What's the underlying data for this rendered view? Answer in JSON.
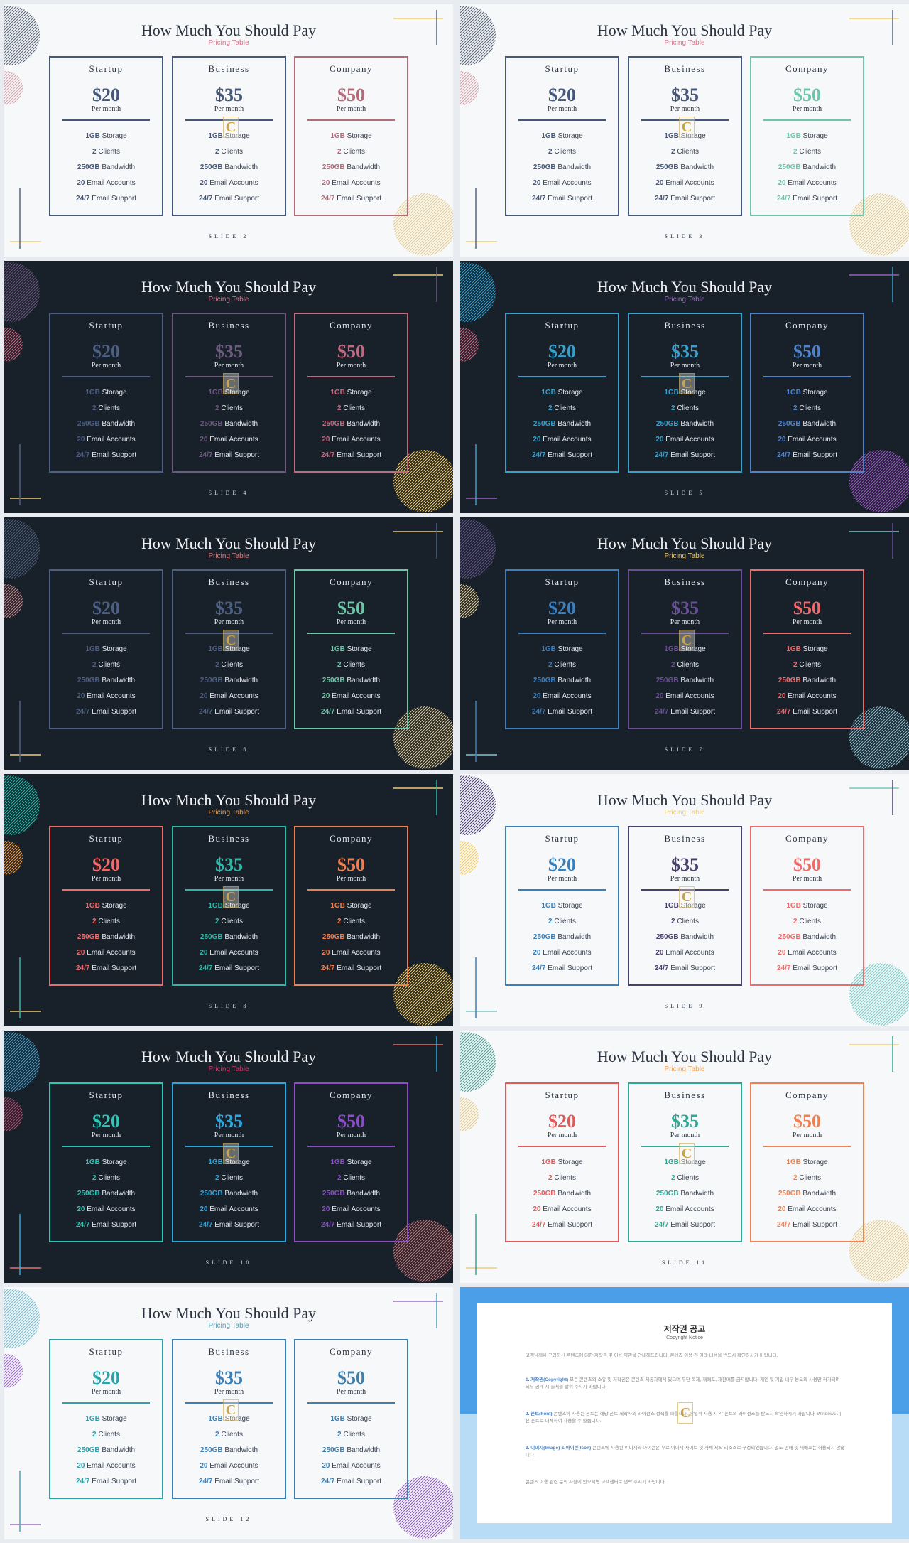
{
  "common": {
    "title": "How Much You Should Pay",
    "subtitle": "Pricing Table",
    "period": "Per month"
  },
  "plans": [
    {
      "name": "Startup",
      "price": "$20",
      "features": [
        {
          "value": "1GB",
          "label": "Storage"
        },
        {
          "value": "2",
          "label": "Clients"
        },
        {
          "value": "250GB",
          "label": "Bandwidth"
        },
        {
          "value": "20",
          "label": "Email Accounts"
        },
        {
          "value": "24/7",
          "label": "Email Support"
        }
      ]
    },
    {
      "name": "Business",
      "price": "$35",
      "features": [
        {
          "value": "1GB",
          "label": "Storage"
        },
        {
          "value": "2",
          "label": "Clients"
        },
        {
          "value": "250GB",
          "label": "Bandwidth"
        },
        {
          "value": "20",
          "label": "Email Accounts"
        },
        {
          "value": "24/7",
          "label": "Email Support"
        }
      ]
    },
    {
      "name": "Company",
      "price": "$50",
      "features": [
        {
          "value": "1GB",
          "label": "Storage"
        },
        {
          "value": "2",
          "label": "Clients"
        },
        {
          "value": "250GB",
          "label": "Bandwidth"
        },
        {
          "value": "20",
          "label": "Email Accounts"
        },
        {
          "value": "24/7",
          "label": "Email Support"
        }
      ]
    }
  ],
  "watermark_glyph": "C",
  "slides": [
    {
      "label": "SLIDE 2",
      "theme": "light",
      "subtitle_color": "#d9748a",
      "card_colors": [
        "#45577a",
        "#45577a",
        "#b46a78"
      ],
      "accent_cards": [
        false,
        false,
        true
      ],
      "deco": {
        "circle_top": "#55657f",
        "circle_mid": "#e19aa4",
        "circle_corner": "#f0cc70",
        "line_h_top": "#f0cc70",
        "line_v_top": "#55657f",
        "line_h_bottom": "#f0cc70",
        "line_v_bottom": "#55657f"
      }
    },
    {
      "label": "SLIDE 3",
      "theme": "light",
      "subtitle_color": "#d9748a",
      "card_colors": [
        "#45577a",
        "#45577a",
        "#6cc7a8"
      ],
      "accent_cards": [
        false,
        false,
        true
      ],
      "deco": {
        "circle_top": "#55657f",
        "circle_mid": "#e19aa4",
        "circle_corner": "#f0cc70",
        "line_h_top": "#f0cc70",
        "line_v_top": "#55657f",
        "line_h_bottom": "#f0cc70",
        "line_v_bottom": "#55657f"
      }
    },
    {
      "label": "SLIDE 4",
      "theme": "dark",
      "subtitle_color": "#d9748a",
      "card_colors": [
        "#4d5f82",
        "#6b5a7e",
        "#c06a80"
      ],
      "accent_cards": [
        false,
        false,
        true
      ],
      "deco": {
        "circle_top": "#6b5a7e",
        "circle_mid": "#c06a80",
        "circle_corner": "#f0cc70",
        "line_h_top": "#f0cc70",
        "line_v_top": "#6b5a7e",
        "line_h_bottom": "#f0cc70",
        "line_v_bottom": "#4d5f82"
      }
    },
    {
      "label": "SLIDE 5",
      "theme": "dark",
      "subtitle_color": "#9a6fc0",
      "card_colors": [
        "#3a9fc9",
        "#3a9fc9",
        "#4f82c8"
      ],
      "accent_cards": [
        true,
        true,
        true
      ],
      "deco": {
        "circle_top": "#3a9fc9",
        "circle_mid": "#c06a80",
        "circle_corner": "#9a5fc0",
        "line_h_top": "#9a5fc0",
        "line_v_top": "#3a9fc9",
        "line_h_bottom": "#9a5fc0",
        "line_v_bottom": "#3a9fc9"
      }
    },
    {
      "label": "SLIDE 6",
      "theme": "dark",
      "subtitle_color": "#e07a7a",
      "card_colors": [
        "#4d5f82",
        "#4d5f82",
        "#6cc7a8"
      ],
      "accent_cards": [
        false,
        false,
        true
      ],
      "deco": {
        "circle_top": "#4d5f82",
        "circle_mid": "#e07a7a",
        "circle_corner": "#f0cc70",
        "line_h_top": "#f0cc70",
        "line_v_top": "#4d5f82",
        "line_h_bottom": "#f0cc70",
        "line_v_bottom": "#4d5f82"
      }
    },
    {
      "label": "SLIDE 7",
      "theme": "dark",
      "subtitle_color": "#f0cc70",
      "card_colors": [
        "#3a7fc0",
        "#6b4f96",
        "#ef6b6b"
      ],
      "accent_cards": [
        true,
        true,
        true
      ],
      "deco": {
        "circle_top": "#6b4f96",
        "circle_mid": "#f0cc70",
        "circle_corner": "#7fc6d4",
        "line_h_top": "#7fc6d4",
        "line_v_top": "#6b4f96",
        "line_h_bottom": "#7fc6d4",
        "line_v_bottom": "#3a7fc0"
      }
    },
    {
      "label": "SLIDE 8",
      "theme": "dark",
      "subtitle_color": "#f0a050",
      "card_colors": [
        "#ef6b6b",
        "#2fb8a8",
        "#f08050"
      ],
      "accent_cards": [
        true,
        true,
        true
      ],
      "deco": {
        "circle_top": "#2fb8a8",
        "circle_mid": "#f0a050",
        "circle_corner": "#f0cc70",
        "line_h_top": "#f0cc70",
        "line_v_top": "#2fb8a8",
        "line_h_bottom": "#f0cc70",
        "line_v_bottom": "#2fb8a8"
      }
    },
    {
      "label": "SLIDE 9",
      "theme": "light",
      "subtitle_color": "#f0cc70",
      "card_colors": [
        "#3a7fb8",
        "#4a3f6e",
        "#ef6b6b"
      ],
      "accent_cards": [
        true,
        true,
        true
      ],
      "deco": {
        "circle_top": "#4a3f6e",
        "circle_mid": "#f0cc70",
        "circle_corner": "#7fc6c0",
        "line_h_top": "#7fc6c0",
        "line_v_top": "#4a3f6e",
        "line_h_bottom": "#7fc6c0",
        "line_v_bottom": "#3a7fb8"
      }
    },
    {
      "label": "SLIDE 10",
      "theme": "dark",
      "subtitle_color": "#d63a6a",
      "card_colors": [
        "#2fc6b8",
        "#2aa8e0",
        "#8a4fc8"
      ],
      "accent_cards": [
        true,
        true,
        true
      ],
      "deco": {
        "circle_top": "#2aa8e0",
        "circle_mid": "#d63a6a",
        "circle_corner": "#ef6b6b",
        "line_h_top": "#ef6b6b",
        "line_v_top": "#2aa8e0",
        "line_h_bottom": "#ef6b6b",
        "line_v_bottom": "#2aa8e0"
      }
    },
    {
      "label": "SLIDE 11",
      "theme": "light",
      "subtitle_color": "#f0a050",
      "card_colors": [
        "#e05a5a",
        "#2fa896",
        "#f08050"
      ],
      "accent_cards": [
        true,
        true,
        true
      ],
      "deco": {
        "circle_top": "#2fa896",
        "circle_mid": "#f0cc70",
        "circle_corner": "#f0cc70",
        "line_h_top": "#f0cc70",
        "line_v_top": "#2fa896",
        "line_h_bottom": "#f0cc70",
        "line_v_bottom": "#2fa896"
      }
    },
    {
      "label": "SLIDE 12",
      "theme": "light",
      "subtitle_color": "#4fa0b8",
      "card_colors": [
        "#2f9fa8",
        "#3a7fb8",
        "#3f7faa"
      ],
      "accent_cards": [
        true,
        true,
        true
      ],
      "deco": {
        "circle_top": "#7fb8c8",
        "circle_mid": "#9a6fc0",
        "circle_corner": "#8a5fb0",
        "line_h_top": "#9a6fc0",
        "line_v_top": "#4fa0b8",
        "line_h_bottom": "#9a6fc0",
        "line_v_bottom": "#4fa0b8"
      }
    }
  ],
  "copyright": {
    "title": "저작권 공고",
    "subtitle": "Copyright Notice",
    "intro": "고객님께서 구입하신 콘텐츠에 대한 저작권 및 이용 약관을 안내해드립니다. 콘텐츠 이용 전 아래 내용을 반드시 확인하시기 바랍니다.",
    "sections": [
      {
        "heading": "1. 저작권(Copyright)",
        "text": "모든 콘텐츠의 소유 및 저작권은 콘텐츠 제공자에게 있으며 무단 복제, 재배포, 재판매를 금지합니다. 개인 및 기업 내부 용도의 사용만 허가되며 외부 공개 시 출처를 밝혀 주시기 바랍니다."
      },
      {
        "heading": "2. 폰트(Font)",
        "text": "콘텐츠에 사용된 폰트는 해당 폰트 제작사의 라이선스 정책을 따릅니다. 상업적 사용 시 각 폰트의 라이선스를 반드시 확인하시기 바랍니다. Windows 기본 폰트로 대체하여 사용할 수 있습니다."
      },
      {
        "heading": "3. 이미지(Image) & 아이콘(Icon)",
        "text": "콘텐츠에 사용된 이미지와 아이콘은 무료 이미지 사이트 및 자체 제작 리소스로 구성되었습니다. 별도 판매 및 재배포는 허용되지 않습니다."
      }
    ],
    "closing": "콘텐츠 이용 관련 문의 사항이 있으시면 고객센터로 연락 주시기 바랍니다.",
    "frame_color_top": "#4a9fe8",
    "frame_color_bottom": "#b8dcf5"
  }
}
